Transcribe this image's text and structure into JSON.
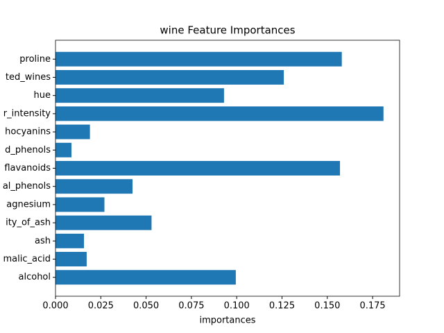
{
  "chart_data": {
    "type": "barh",
    "title": "wine Feature Importances",
    "x_label": "importances",
    "categories": [
      "alcohol",
      "malic_acid",
      "ash",
      "ity_of_ash",
      "agnesium",
      "al_phenols",
      "flavanoids",
      "d_phenols",
      "hocyanins",
      "r_intensity",
      "hue",
      "ted_wines",
      "proline"
    ],
    "values": [
      0.0995,
      0.0172,
      0.0157,
      0.053,
      0.027,
      0.0425,
      0.157,
      0.0088,
      0.019,
      0.181,
      0.093,
      0.126,
      0.158
    ],
    "color": "#1f77b4",
    "xlim": [
      0,
      0.1899
    ],
    "xticks": [
      {
        "value": 0,
        "label": "0.000"
      },
      {
        "value": 0.025,
        "label": "0.025"
      },
      {
        "value": 0.05,
        "label": "0.050"
      },
      {
        "value": 0.075,
        "label": "0.075"
      },
      {
        "value": 0.1,
        "label": "0.100"
      },
      {
        "value": 0.125,
        "label": "0.125"
      },
      {
        "value": 0.15,
        "label": "0.150"
      },
      {
        "value": 0.175,
        "label": "0.175"
      }
    ],
    "grid": false
  }
}
